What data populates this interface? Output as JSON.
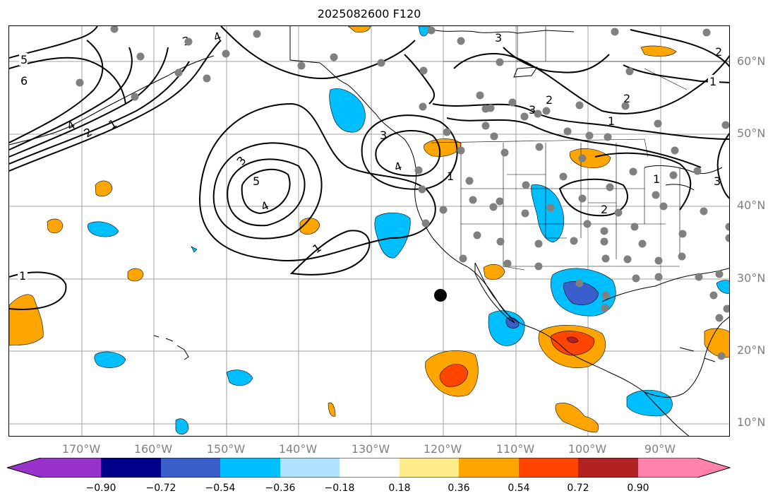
{
  "title": "2025082600 F120",
  "lat_labels": [
    "60°N",
    "50°N",
    "40°N",
    "30°N",
    "20°N",
    "10°N"
  ],
  "lon_labels": [
    "170°W",
    "160°W",
    "150°W",
    "140°W",
    "130°W",
    "120°W",
    "110°W",
    "100°W",
    "90°W"
  ],
  "contour_labels": [
    "5",
    "6",
    "4",
    "2",
    "1",
    "3",
    "3",
    "4",
    "5",
    "4",
    "3",
    "1",
    "1",
    "4",
    "3",
    "2",
    "3",
    "2",
    "1",
    "1",
    "2",
    "3",
    "2",
    "1",
    "1"
  ],
  "colorbar": {
    "colors": [
      "#9932cc",
      "#00008b",
      "#3a5fcd",
      "#00bfff",
      "#b0e2ff",
      "#ffffff",
      "#ffec8b",
      "#ffa500",
      "#ff4500",
      "#b22222",
      "#ff82ab"
    ],
    "tick_labels": [
      "−0.90",
      "−0.72",
      "−0.54",
      "−0.36",
      "−0.18",
      "0.18",
      "0.36",
      "0.54",
      "0.72",
      "0.90"
    ]
  },
  "colors": {
    "gridline": "#a0a0a0",
    "station_dot": "#808080",
    "axis_label": "#808080",
    "coast": "#000000"
  },
  "marker": {
    "name": "black-point"
  }
}
